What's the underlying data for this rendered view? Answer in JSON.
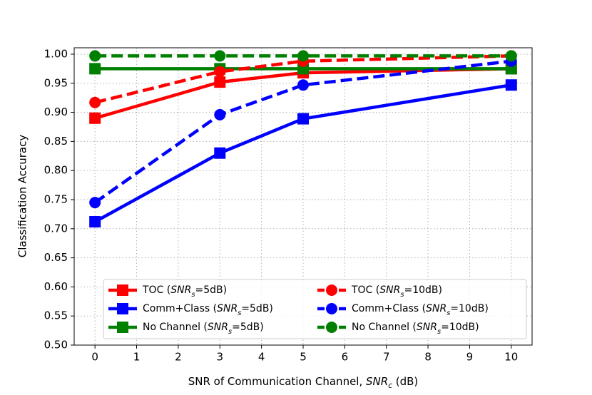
{
  "chart_data": {
    "type": "line",
    "xlabel": "SNR of Communication Channel, SNR_c (dB)",
    "ylabel": "Classification Accuracy",
    "x": [
      0,
      3,
      5,
      10
    ],
    "xlim": [
      -0.5,
      10.5
    ],
    "ylim": [
      0.5,
      1.011
    ],
    "xticks": [
      0,
      1,
      2,
      3,
      4,
      5,
      6,
      7,
      8,
      9,
      10
    ],
    "yticks": [
      {
        "value": 0.5,
        "label": "0.50"
      },
      {
        "value": 0.55,
        "label": "0.55"
      },
      {
        "value": 0.6,
        "label": "0.60"
      },
      {
        "value": 0.65,
        "label": "0.65"
      },
      {
        "value": 0.7,
        "label": "0.70"
      },
      {
        "value": 0.75,
        "label": "0.75"
      },
      {
        "value": 0.8,
        "label": "0.80"
      },
      {
        "value": 0.85,
        "label": "0.85"
      },
      {
        "value": 0.9,
        "label": "0.90"
      },
      {
        "value": 0.95,
        "label": "0.95"
      },
      {
        "value": 1.0,
        "label": "1.00"
      }
    ],
    "grid": true,
    "legend": "lower center",
    "series": [
      {
        "name": "TOC (SNR_s=5dB)",
        "color": "#ff0000",
        "linestyle": "solid",
        "marker": "square",
        "values": [
          0.89,
          0.952,
          0.968,
          0.975
        ]
      },
      {
        "name": "Comm+Class (SNR_s=5dB)",
        "color": "#0000ff",
        "linestyle": "solid",
        "marker": "square",
        "values": [
          0.712,
          0.83,
          0.889,
          0.947
        ]
      },
      {
        "name": "No Channel (SNR_s=5dB)",
        "color": "#008000",
        "linestyle": "solid",
        "marker": "square",
        "values": [
          0.975,
          0.975,
          0.975,
          0.975
        ]
      },
      {
        "name": "TOC (SNR_s=10dB)",
        "color": "#ff0000",
        "linestyle": "dashed",
        "marker": "circle",
        "values": [
          0.917,
          0.97,
          0.988,
          0.997
        ]
      },
      {
        "name": "Comm+Class (SNR_s=10dB)",
        "color": "#0000ff",
        "linestyle": "dashed",
        "marker": "circle",
        "values": [
          0.745,
          0.896,
          0.947,
          0.988
        ]
      },
      {
        "name": "No Channel (SNR_s=10dB)",
        "color": "#008000",
        "linestyle": "dashed",
        "marker": "circle",
        "values": [
          0.997,
          0.997,
          0.997,
          0.997
        ]
      }
    ]
  }
}
